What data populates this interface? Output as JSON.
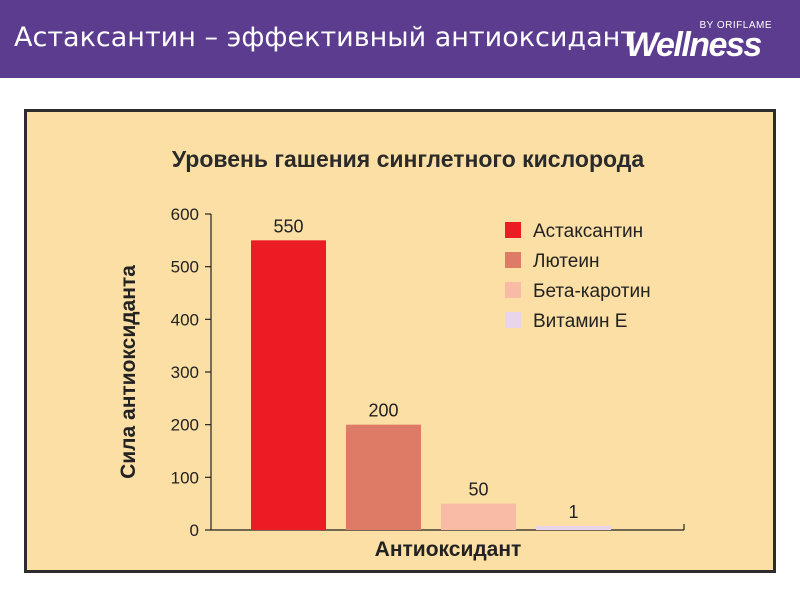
{
  "slide": {
    "title": "Астаксантин – эффективный антиоксидант"
  },
  "brand": {
    "wordmark": "Wellness",
    "byline": "BY ORIFLAME"
  },
  "colors": {
    "header_bg": "#5b3c8f",
    "panel_bg": "#fbdfa4",
    "panel_border": "#2d2d2d"
  },
  "chart_data": {
    "type": "bar",
    "title": "Уровень гашения синглетного кислорода",
    "xlabel": "Антиоксидант",
    "ylabel": "Сила антиоксиданта",
    "ylim": [
      0,
      600
    ],
    "yticks": [
      0,
      100,
      200,
      300,
      400,
      500,
      600
    ],
    "categories": [
      "Астаксантин",
      "Лютеин",
      "Бета-каротин",
      "Витамин Е"
    ],
    "values": [
      550,
      200,
      50,
      1
    ],
    "data_labels": [
      "550",
      "200",
      "50",
      "1"
    ],
    "colors": [
      "#ec1c24",
      "#de7b66",
      "#f9bba5",
      "#e8d5ea"
    ],
    "legend": {
      "placement": "top-right",
      "entries": [
        "Астаксантин",
        "Лютеин",
        "Бета-каротин",
        "Витамин Е"
      ]
    },
    "grid": false
  }
}
